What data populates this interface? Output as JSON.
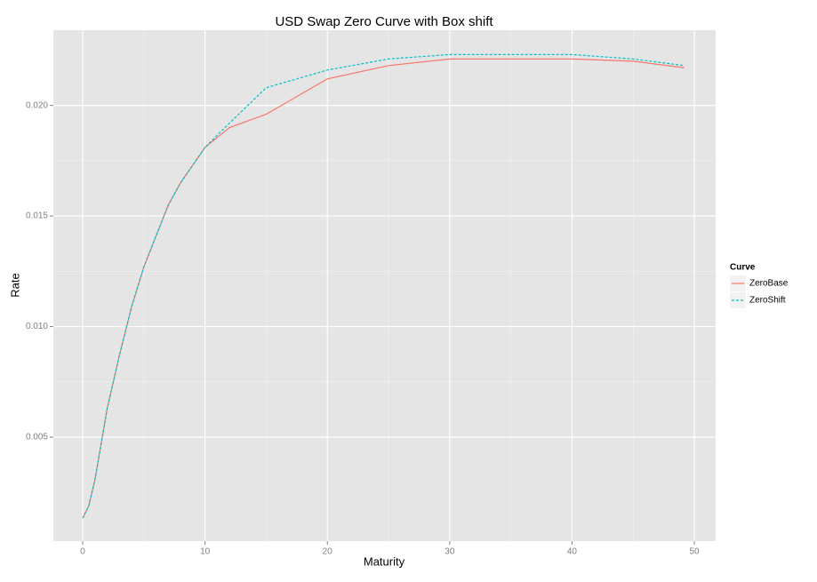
{
  "chart_data": {
    "type": "line",
    "title": "USD Swap Zero Curve with Box shift",
    "x_label": "Maturity",
    "y_label": "Rate",
    "x": [
      0,
      0.5,
      1,
      2,
      3,
      4,
      5,
      6,
      7,
      8,
      9,
      10,
      12,
      15,
      20,
      25,
      30,
      35,
      40,
      45,
      49.2
    ],
    "series": [
      {
        "name": "ZeroBase",
        "color": "#f8766d",
        "dash": false,
        "values": [
          0.00134,
          0.0019,
          0.00307,
          0.00629,
          0.0087,
          0.0109,
          0.0127,
          0.0141,
          0.0155,
          0.0165,
          0.0173,
          0.0181,
          0.019,
          0.0196,
          0.0212,
          0.0218,
          0.0221,
          0.0221,
          0.0221,
          0.022,
          0.0217
        ]
      },
      {
        "name": "ZeroShift",
        "color": "#00bfc4",
        "dash": true,
        "values": [
          0.00134,
          0.0019,
          0.00307,
          0.00629,
          0.0087,
          0.0109,
          0.0127,
          0.0141,
          0.0155,
          0.0165,
          0.0173,
          0.0181,
          0.0192,
          0.0208,
          0.0216,
          0.0221,
          0.0223,
          0.0223,
          0.0223,
          0.0221,
          0.0218
        ]
      }
    ],
    "legend_title": "Curve",
    "legend": "right",
    "xlim": [
      -2.4,
      51.74
    ],
    "xticks": [
      0,
      10,
      20,
      30,
      40,
      50
    ],
    "ylim": [
      0.0003,
      0.0234
    ],
    "yticks": [
      0.005,
      {
        "value": 0.01,
        "label": "0.010"
      },
      0.015,
      {
        "value": 0.02,
        "label": "0.020"
      }
    ],
    "grid": true
  }
}
